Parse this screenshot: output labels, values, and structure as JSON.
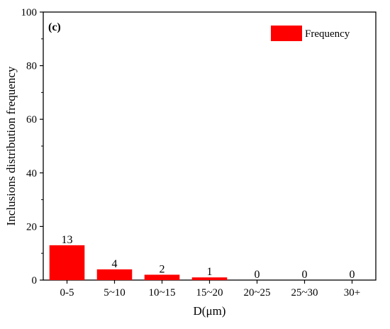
{
  "chart_data": {
    "type": "bar",
    "panel_label": "(c)",
    "xlabel": "D(μm)",
    "ylabel": "Inclusions distribution frequency",
    "ylim": [
      0,
      100
    ],
    "yticks": [
      0,
      20,
      40,
      60,
      80,
      100
    ],
    "categories": [
      "0-5",
      "5~10",
      "10~15",
      "15~20",
      "20~25",
      "25~30",
      "30+"
    ],
    "series": [
      {
        "name": "Frequency",
        "color": "#ff0000",
        "values": [
          13,
          4,
          2,
          1,
          0,
          0,
          0
        ],
        "labels": [
          "13",
          "4",
          "2",
          "1",
          "0",
          "0",
          "0"
        ]
      }
    ],
    "legend_position": "top-right",
    "grid": false
  }
}
